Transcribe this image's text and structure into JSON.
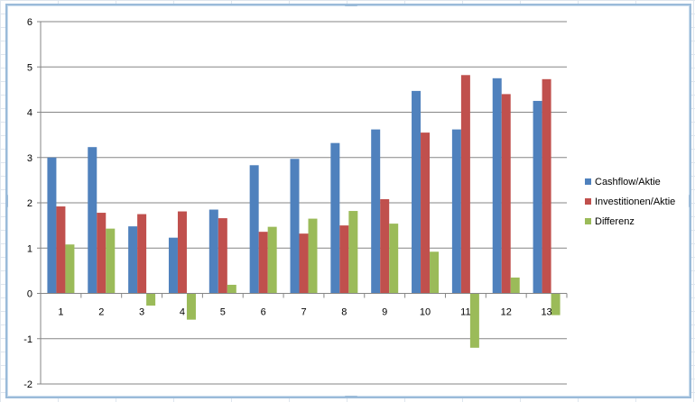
{
  "chart_data": {
    "type": "bar",
    "categories": [
      "1",
      "2",
      "3",
      "4",
      "5",
      "6",
      "7",
      "8",
      "9",
      "10",
      "11",
      "12",
      "13"
    ],
    "series": [
      {
        "name": "Cashflow/Aktie",
        "color": "#4f81bd",
        "values": [
          3.0,
          3.23,
          1.48,
          1.23,
          1.85,
          2.83,
          2.97,
          3.32,
          3.62,
          4.47,
          3.62,
          4.75,
          4.25
        ]
      },
      {
        "name": "Investitionen/Aktie",
        "color": "#c0504d",
        "values": [
          1.92,
          1.78,
          1.75,
          1.81,
          1.66,
          1.36,
          1.32,
          1.5,
          2.08,
          3.55,
          4.82,
          4.4,
          4.73
        ]
      },
      {
        "name": "Differenz",
        "color": "#9bbb59",
        "values": [
          1.08,
          1.43,
          -0.27,
          -0.58,
          0.19,
          1.47,
          1.65,
          1.82,
          1.54,
          0.92,
          -1.2,
          0.35,
          -0.48
        ]
      }
    ],
    "ylim": [
      -2,
      6
    ],
    "yticks": [
      "-2",
      "-1",
      "0",
      "1",
      "2",
      "3",
      "4",
      "5",
      "6"
    ],
    "grid": true,
    "legend": "right",
    "title": "",
    "xlabel": "",
    "ylabel": ""
  }
}
